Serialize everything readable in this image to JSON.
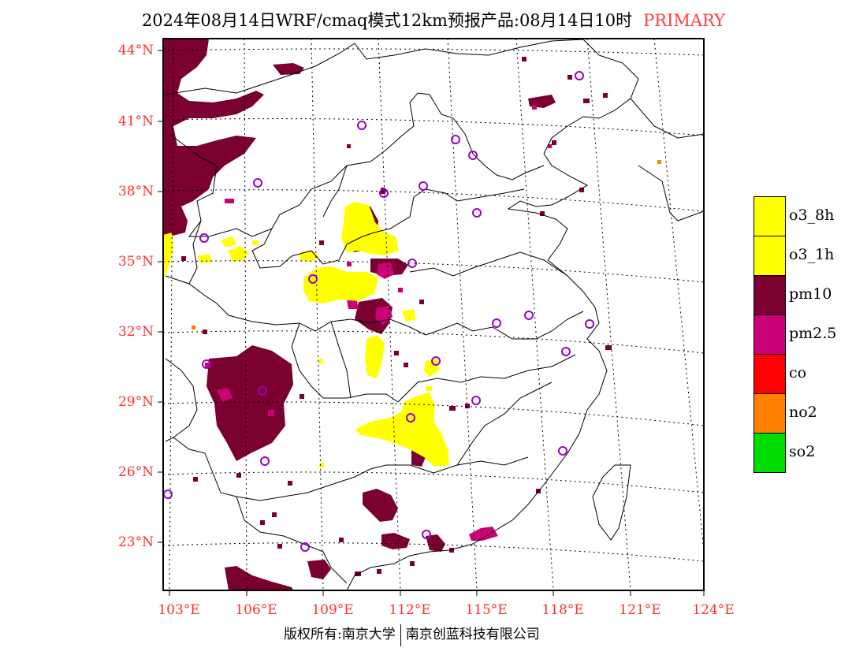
{
  "title": {
    "main": "2024年08月14日WRF/cmaq模式12km预报产品:08月14日10时",
    "tag": "PRIMARY"
  },
  "axes": {
    "lat_labels": [
      "44°N",
      "41°N",
      "38°N",
      "35°N",
      "32°N",
      "29°N",
      "26°N",
      "23°N"
    ],
    "lon_labels": [
      "103°E",
      "106°E",
      "109°E",
      "112°E",
      "115°E",
      "118°E",
      "121°E",
      "124°E"
    ]
  },
  "footer": {
    "left": "版权所有:南京大学",
    "right": "南京创蓝科技有限公司"
  },
  "legend": [
    {
      "label": "o3_8h",
      "color": "#ffff00"
    },
    {
      "label": "o3_1h",
      "color": "#ffff00"
    },
    {
      "label": "pm10",
      "color": "#7a0030"
    },
    {
      "label": "pm2.5",
      "color": "#cc0077"
    },
    {
      "label": "co",
      "color": "#ff0000"
    },
    {
      "label": "no2",
      "color": "#ff8000"
    },
    {
      "label": "so2",
      "color": "#00dd00"
    }
  ],
  "colors": {
    "axis_labels": "#ff3030",
    "station_marker": "#9900cc"
  }
}
